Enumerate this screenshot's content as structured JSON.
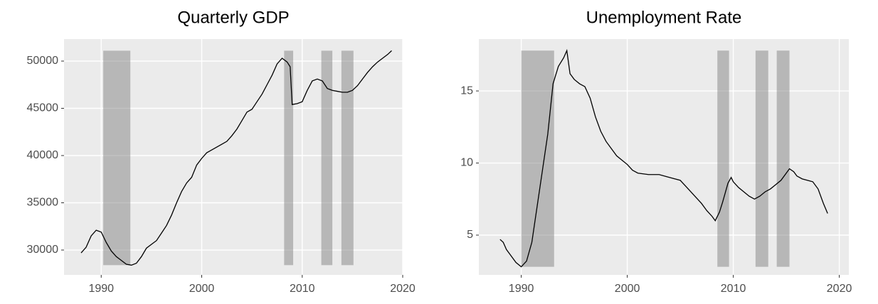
{
  "chart_data": [
    {
      "type": "line",
      "title": "Quarterly GDP",
      "color": "#000000",
      "grid": true,
      "xlim": [
        1986.3,
        2020.0
      ],
      "ylim": [
        27370,
        52330
      ],
      "xticks": [
        1990,
        2000,
        2010,
        2020
      ],
      "yticks": [
        30000,
        35000,
        40000,
        45000,
        50000
      ],
      "shaded_regions": [
        {
          "xmin": 1990.2,
          "xmax": 1992.9,
          "ymin": 28400,
          "ymax": 51100
        },
        {
          "xmin": 2008.2,
          "xmax": 2009.1,
          "ymin": 28400,
          "ymax": 51100
        },
        {
          "xmin": 2011.9,
          "xmax": 2013.0,
          "ymin": 28400,
          "ymax": 51100
        },
        {
          "xmin": 2013.9,
          "xmax": 2015.1,
          "ymin": 28400,
          "ymax": 51100
        }
      ],
      "x": [
        1988,
        1988.5,
        1989,
        1989.5,
        1990,
        1990.5,
        1991,
        1991.5,
        1992,
        1992.5,
        1993,
        1993.5,
        1994,
        1994.5,
        1995,
        1995.5,
        1996,
        1996.5,
        1997,
        1997.5,
        1998,
        1998.5,
        1999,
        1999.5,
        2000,
        2000.5,
        2001,
        2001.5,
        2002,
        2002.5,
        2003,
        2003.5,
        2004,
        2004.5,
        2005,
        2005.5,
        2006,
        2006.5,
        2007,
        2007.5,
        2008,
        2008.5,
        2008.8,
        2009,
        2009.5,
        2010,
        2010.5,
        2011,
        2011.5,
        2012,
        2012.5,
        2013,
        2013.5,
        2014,
        2014.5,
        2015,
        2015.5,
        2016,
        2016.5,
        2017,
        2017.5,
        2018,
        2018.5,
        2018.9
      ],
      "values": [
        29700,
        30300,
        31500,
        32100,
        31900,
        30800,
        29900,
        29300,
        28900,
        28500,
        28400,
        28600,
        29300,
        30200,
        30600,
        31000,
        31800,
        32600,
        33700,
        35000,
        36200,
        37100,
        37700,
        39000,
        39700,
        40300,
        40600,
        40900,
        41200,
        41500,
        42100,
        42800,
        43700,
        44600,
        44900,
        45700,
        46500,
        47500,
        48500,
        49700,
        50300,
        49900,
        49400,
        45400,
        45500,
        45700,
        46900,
        47900,
        48100,
        47900,
        47100,
        46900,
        46800,
        46700,
        46700,
        46900,
        47400,
        48100,
        48800,
        49400,
        49900,
        50300,
        50700,
        51100
      ]
    },
    {
      "type": "line",
      "title": "Unemployment Rate",
      "color": "#000000",
      "grid": true,
      "xlim": [
        1986.0,
        2020.9
      ],
      "ylim": [
        2.24,
        18.6
      ],
      "xticks": [
        1990,
        2000,
        2010,
        2020
      ],
      "yticks": [
        5,
        10,
        15
      ],
      "shaded_regions": [
        {
          "xmin": 1990.0,
          "xmax": 1993.1,
          "ymin": 2.8,
          "ymax": 17.8
        },
        {
          "xmin": 2008.5,
          "xmax": 2009.6,
          "ymin": 2.8,
          "ymax": 17.8
        },
        {
          "xmin": 2012.1,
          "xmax": 2013.3,
          "ymin": 2.8,
          "ymax": 17.8
        },
        {
          "xmin": 2014.1,
          "xmax": 2015.3,
          "ymin": 2.8,
          "ymax": 17.8
        }
      ],
      "x": [
        1988,
        1988.3,
        1988.6,
        1989,
        1989.5,
        1990,
        1990.5,
        1991,
        1991.5,
        1992,
        1992.5,
        1993,
        1993.5,
        1994,
        1994.3,
        1994.6,
        1995,
        1995.5,
        1996,
        1996.5,
        1997,
        1997.5,
        1998,
        1998.5,
        1999,
        1999.5,
        2000,
        2000.5,
        2001,
        2002,
        2003,
        2004,
        2005,
        2005.5,
        2006,
        2006.5,
        2007,
        2007.5,
        2008,
        2008.3,
        2008.7,
        2009,
        2009.5,
        2009.8,
        2010,
        2010.5,
        2011,
        2011.5,
        2012,
        2012.5,
        2013,
        2013.5,
        2014,
        2014.5,
        2015,
        2015.3,
        2015.7,
        2016,
        2016.5,
        2017,
        2017.5,
        2018,
        2018.5,
        2018.9
      ],
      "values": [
        4.7,
        4.5,
        4.0,
        3.6,
        3.1,
        2.8,
        3.2,
        4.5,
        7.0,
        9.5,
        12.0,
        15.5,
        16.7,
        17.3,
        17.8,
        16.2,
        15.8,
        15.5,
        15.3,
        14.5,
        13.2,
        12.2,
        11.5,
        11.0,
        10.5,
        10.2,
        9.9,
        9.5,
        9.3,
        9.2,
        9.2,
        9.0,
        8.8,
        8.4,
        8.0,
        7.6,
        7.2,
        6.7,
        6.3,
        6.0,
        6.6,
        7.3,
        8.6,
        9.0,
        8.7,
        8.3,
        8.0,
        7.7,
        7.5,
        7.7,
        8.0,
        8.2,
        8.5,
        8.8,
        9.3,
        9.6,
        9.4,
        9.1,
        8.9,
        8.8,
        8.7,
        8.2,
        7.2,
        6.5
      ]
    }
  ]
}
